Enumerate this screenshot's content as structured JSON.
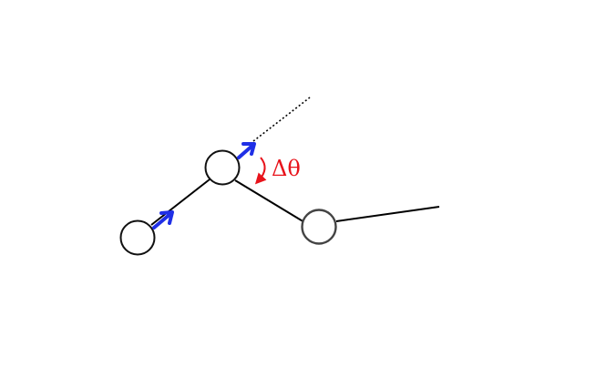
{
  "diagram": {
    "angle_label": "Δθ",
    "colors": {
      "node_stroke": "#111111",
      "edge": "#000000",
      "arrow": "#1f2fe6",
      "angle": "#e8131b",
      "background": "#ffffff"
    }
  }
}
